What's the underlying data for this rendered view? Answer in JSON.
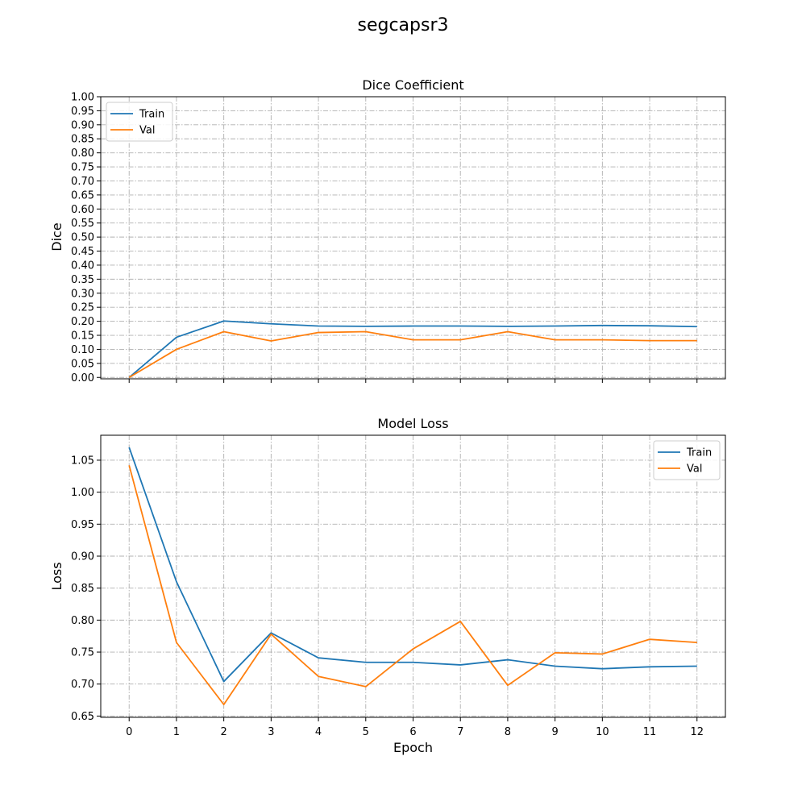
{
  "figure": {
    "suptitle": "segcapsr3"
  },
  "colors": {
    "train": "#1f77b4",
    "val": "#ff7f0e"
  },
  "chart_data": [
    {
      "type": "line",
      "title": "Dice Coefficient",
      "xlabel": "",
      "ylabel": "Dice",
      "x": [
        0,
        1,
        2,
        3,
        4,
        5,
        6,
        7,
        8,
        9,
        10,
        11,
        12
      ],
      "xlim": [
        -0.6,
        12.6
      ],
      "ylim": [
        -0.005,
        1.0
      ],
      "yticks": [
        "0.00",
        "0.05",
        "0.10",
        "0.15",
        "0.20",
        "0.25",
        "0.30",
        "0.35",
        "0.40",
        "0.45",
        "0.50",
        "0.55",
        "0.60",
        "0.65",
        "0.70",
        "0.75",
        "0.80",
        "0.85",
        "0.90",
        "0.95",
        "1.00"
      ],
      "xticklabels_visible": false,
      "grid": true,
      "legend_position": "upper left",
      "series": [
        {
          "name": "Train",
          "color": "#1f77b4",
          "values": [
            0.0,
            0.143,
            0.201,
            0.191,
            0.183,
            0.182,
            0.183,
            0.183,
            0.182,
            0.183,
            0.185,
            0.184,
            0.181
          ]
        },
        {
          "name": "Val",
          "color": "#ff7f0e",
          "values": [
            0.0,
            0.1,
            0.163,
            0.13,
            0.16,
            0.163,
            0.134,
            0.134,
            0.163,
            0.134,
            0.134,
            0.131,
            0.131
          ]
        }
      ]
    },
    {
      "type": "line",
      "title": "Model Loss",
      "xlabel": "Epoch",
      "ylabel": "Loss",
      "x": [
        0,
        1,
        2,
        3,
        4,
        5,
        6,
        7,
        8,
        9,
        10,
        11,
        12
      ],
      "xlim": [
        -0.6,
        12.6
      ],
      "ylim": [
        0.648,
        1.089
      ],
      "yticks": [
        "0.65",
        "0.70",
        "0.75",
        "0.80",
        "0.85",
        "0.90",
        "0.95",
        "1.00",
        "1.05"
      ],
      "xticks": [
        "0",
        "1",
        "2",
        "3",
        "4",
        "5",
        "6",
        "7",
        "8",
        "9",
        "10",
        "11",
        "12"
      ],
      "xticklabels_visible": true,
      "grid": true,
      "legend_position": "upper right",
      "series": [
        {
          "name": "Train",
          "color": "#1f77b4",
          "values": [
            1.07,
            0.86,
            0.704,
            0.78,
            0.741,
            0.734,
            0.734,
            0.73,
            0.738,
            0.728,
            0.724,
            0.727,
            0.728
          ]
        },
        {
          "name": "Val",
          "color": "#ff7f0e",
          "values": [
            1.042,
            0.765,
            0.668,
            0.778,
            0.712,
            0.696,
            0.755,
            0.798,
            0.698,
            0.749,
            0.747,
            0.77,
            0.765
          ]
        }
      ]
    }
  ]
}
